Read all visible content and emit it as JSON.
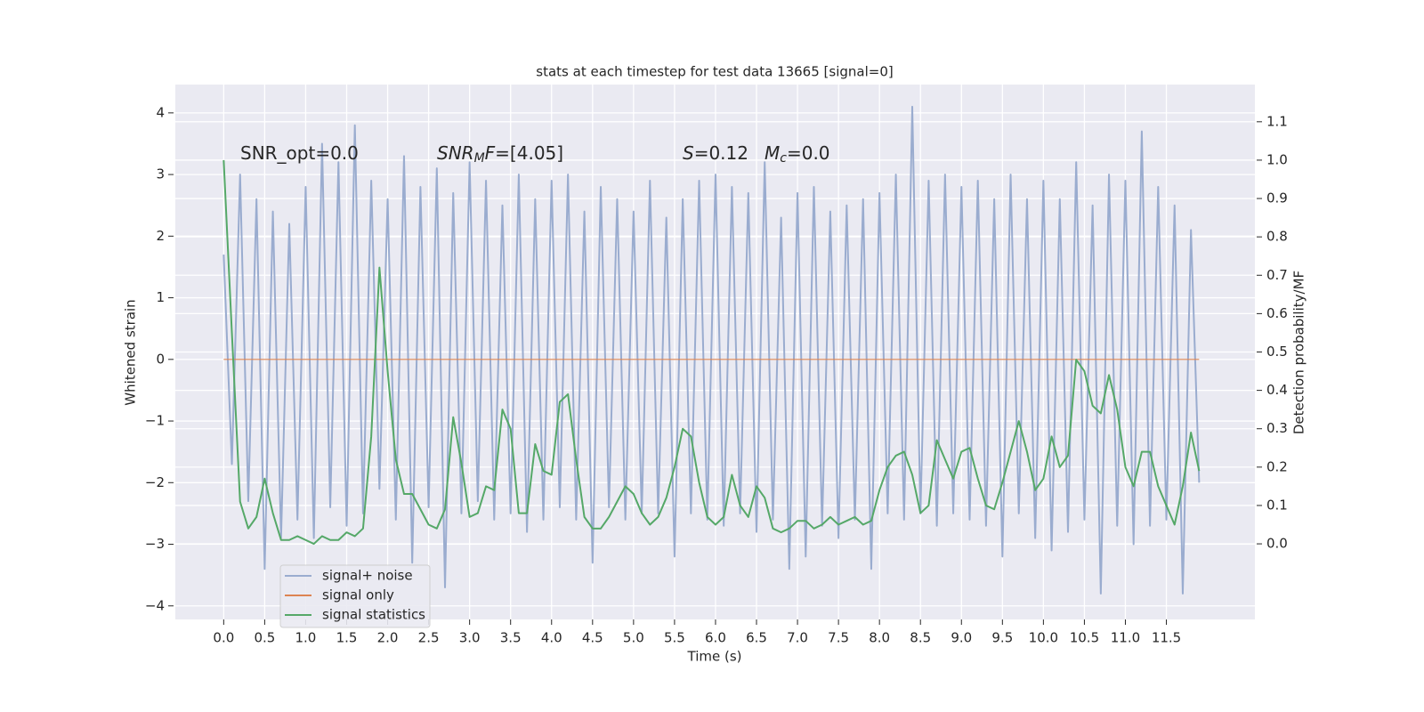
{
  "chart_data": {
    "type": "line",
    "title": "stats at each timestep for test data 13665 [signal=0]",
    "xlabel": "Time (s)",
    "ylabel": "Whitened strain",
    "y2label": "Detection probability/MF",
    "grid": true,
    "legend": "lower left",
    "background": "#eaeaf2",
    "annotations": [
      [
        {
          "text": "SNR_opt=0.0"
        }
      ],
      [
        {
          "text": "SNR",
          "italic": true
        },
        {
          "text": "M",
          "italic": true,
          "sub": true
        },
        {
          "text": "F",
          "italic": true
        },
        {
          "text": "=[4.05]"
        }
      ],
      [
        {
          "text": "S",
          "italic": true
        },
        {
          "text": "=0.12"
        }
      ],
      [
        {
          "text": "M",
          "italic": true
        },
        {
          "text": "c",
          "italic": true,
          "sub": true
        },
        {
          "text": "=0.0"
        }
      ]
    ],
    "x": [
      0.0,
      0.1,
      0.2,
      0.3,
      0.4,
      0.5,
      0.6,
      0.7,
      0.8,
      0.9,
      1.0,
      1.1,
      1.2,
      1.3,
      1.4,
      1.5,
      1.6,
      1.7,
      1.8,
      1.9,
      2.0,
      2.1,
      2.2,
      2.3,
      2.4,
      2.5,
      2.6,
      2.7,
      2.8,
      2.9,
      3.0,
      3.1,
      3.2,
      3.3,
      3.4,
      3.5,
      3.6,
      3.7,
      3.8,
      3.9,
      4.0,
      4.1,
      4.2,
      4.3,
      4.4,
      4.5,
      4.6,
      4.7,
      4.8,
      4.9,
      5.0,
      5.1,
      5.2,
      5.3,
      5.4,
      5.5,
      5.6,
      5.7,
      5.8,
      5.9,
      6.0,
      6.1,
      6.2,
      6.3,
      6.4,
      6.5,
      6.6,
      6.7,
      6.8,
      6.9,
      7.0,
      7.1,
      7.2,
      7.3,
      7.4,
      7.5,
      7.6,
      7.7,
      7.8,
      7.9,
      8.0,
      8.1,
      8.2,
      8.3,
      8.4,
      8.5,
      8.6,
      8.7,
      8.8,
      8.9,
      9.0,
      9.1,
      9.2,
      9.3,
      9.4,
      9.5,
      9.6,
      9.7,
      9.8,
      9.9,
      10.0,
      10.1,
      10.2,
      10.3,
      10.4,
      10.5,
      10.6,
      10.7,
      10.8,
      10.9,
      11.0,
      11.1,
      11.2,
      11.3,
      11.4,
      11.5,
      11.6,
      11.7,
      11.8,
      11.9
    ],
    "series": [
      {
        "name": "signal+ noise",
        "color": "#9aaccf",
        "values": [
          1.7,
          -1.7,
          3.0,
          -2.3,
          2.6,
          -3.4,
          2.4,
          -2.9,
          2.2,
          -2.6,
          2.8,
          -2.9,
          3.5,
          -2.4,
          3.2,
          -2.7,
          3.8,
          -2.5,
          2.9,
          -2.1,
          2.6,
          -2.6,
          3.3,
          -3.3,
          2.8,
          -2.4,
          3.1,
          -3.7,
          2.7,
          -2.5,
          3.2,
          -2.3,
          2.9,
          -2.6,
          2.5,
          -2.5,
          3.0,
          -2.8,
          2.6,
          -2.6,
          2.9,
          -2.4,
          3.0,
          -2.6,
          2.4,
          -3.3,
          2.8,
          -2.4,
          2.6,
          -2.6,
          2.4,
          -2.5,
          2.9,
          -2.5,
          2.3,
          -3.2,
          2.6,
          -2.5,
          2.9,
          -2.6,
          3.0,
          -2.7,
          2.8,
          -2.5,
          2.7,
          -2.8,
          3.2,
          -2.6,
          2.3,
          -3.4,
          2.7,
          -3.2,
          2.8,
          -2.7,
          2.4,
          -2.9,
          2.5,
          -2.6,
          2.6,
          -3.4,
          2.7,
          -2.5,
          3.0,
          -2.6,
          4.1,
          -2.5,
          2.9,
          -2.7,
          3.0,
          -2.5,
          2.8,
          -2.6,
          2.9,
          -2.7,
          2.6,
          -3.2,
          3.0,
          -2.5,
          2.6,
          -2.9,
          2.9,
          -3.1,
          2.6,
          -2.8,
          3.2,
          -2.6,
          2.5,
          -3.8,
          3.0,
          -2.7,
          2.9,
          -3.0,
          3.7,
          -2.7,
          2.8,
          -2.6,
          2.5,
          -3.8,
          2.1,
          -2.0
        ]
      },
      {
        "name": "signal only",
        "color": "#dd8452",
        "values": [
          0,
          0,
          0,
          0,
          0,
          0,
          0,
          0,
          0,
          0,
          0,
          0,
          0,
          0,
          0,
          0,
          0,
          0,
          0,
          0,
          0,
          0,
          0,
          0,
          0,
          0,
          0,
          0,
          0,
          0,
          0,
          0,
          0,
          0,
          0,
          0,
          0,
          0,
          0,
          0,
          0,
          0,
          0,
          0,
          0,
          0,
          0,
          0,
          0,
          0,
          0,
          0,
          0,
          0,
          0,
          0,
          0,
          0,
          0,
          0,
          0,
          0,
          0,
          0,
          0,
          0,
          0,
          0,
          0,
          0,
          0,
          0,
          0,
          0,
          0,
          0,
          0,
          0,
          0,
          0,
          0,
          0,
          0,
          0,
          0,
          0,
          0,
          0,
          0,
          0,
          0,
          0,
          0,
          0,
          0,
          0,
          0,
          0,
          0,
          0,
          0,
          0,
          0,
          0,
          0,
          0,
          0,
          0,
          0,
          0,
          0,
          0,
          0,
          0,
          0,
          0,
          0,
          0,
          0,
          0
        ]
      },
      {
        "name": "signal statistics",
        "color": "#55a868",
        "axis": "y2",
        "values": [
          1.0,
          0.55,
          0.11,
          0.04,
          0.07,
          0.17,
          0.08,
          0.01,
          0.01,
          0.02,
          0.01,
          0.0,
          0.02,
          0.01,
          0.01,
          0.03,
          0.02,
          0.04,
          0.28,
          0.72,
          0.45,
          0.22,
          0.13,
          0.13,
          0.09,
          0.05,
          0.04,
          0.09,
          0.33,
          0.21,
          0.07,
          0.08,
          0.15,
          0.14,
          0.35,
          0.3,
          0.08,
          0.08,
          0.26,
          0.19,
          0.18,
          0.37,
          0.39,
          0.22,
          0.07,
          0.04,
          0.04,
          0.07,
          0.11,
          0.15,
          0.13,
          0.08,
          0.05,
          0.07,
          0.12,
          0.2,
          0.3,
          0.28,
          0.16,
          0.07,
          0.05,
          0.07,
          0.18,
          0.1,
          0.07,
          0.15,
          0.12,
          0.04,
          0.03,
          0.04,
          0.06,
          0.06,
          0.04,
          0.05,
          0.07,
          0.05,
          0.06,
          0.07,
          0.05,
          0.06,
          0.14,
          0.2,
          0.23,
          0.24,
          0.18,
          0.08,
          0.1,
          0.27,
          0.22,
          0.17,
          0.24,
          0.25,
          0.17,
          0.1,
          0.09,
          0.16,
          0.24,
          0.32,
          0.24,
          0.14,
          0.17,
          0.28,
          0.2,
          0.23,
          0.48,
          0.45,
          0.36,
          0.34,
          0.44,
          0.35,
          0.2,
          0.15,
          0.24,
          0.24,
          0.15,
          0.1,
          0.05,
          0.15,
          0.29,
          0.19
        ]
      }
    ],
    "xlim": [
      -0.59,
      12.58
    ],
    "xticks": [
      {
        "value": 0,
        "label": "0.0"
      },
      0.5,
      {
        "value": 1,
        "label": "1.0"
      },
      1.5,
      {
        "value": 2,
        "label": "2.0"
      },
      2.5,
      {
        "value": 3,
        "label": "3.0"
      },
      3.5,
      {
        "value": 4,
        "label": "4.0"
      },
      4.5,
      {
        "value": 5,
        "label": "5.0"
      },
      5.5,
      {
        "value": 6,
        "label": "6.0"
      },
      6.5,
      {
        "value": 7,
        "label": "7.0"
      },
      7.5,
      {
        "value": 8,
        "label": "8.0"
      },
      8.5,
      {
        "value": 9,
        "label": "9.0"
      },
      9.5,
      {
        "value": 10,
        "label": "10.0"
      },
      10.5,
      {
        "value": 11,
        "label": "11.0"
      },
      11.5
    ],
    "ylim": [
      -4.22,
      4.46
    ],
    "yticks": [
      {
        "value": -4,
        "label": "−4"
      },
      {
        "value": -3,
        "label": "−3"
      },
      {
        "value": -2,
        "label": "−2"
      },
      {
        "value": -1,
        "label": "−1"
      },
      0,
      1,
      2,
      3,
      4
    ],
    "y2lim": [
      -0.197,
      1.197
    ],
    "y2ticks": [
      {
        "value": 0,
        "label": "0.0"
      },
      0.1,
      0.2,
      0.3,
      0.4,
      0.5,
      0.6,
      0.7,
      0.8,
      0.9,
      {
        "value": 1,
        "label": "1.0"
      },
      1.1
    ]
  }
}
